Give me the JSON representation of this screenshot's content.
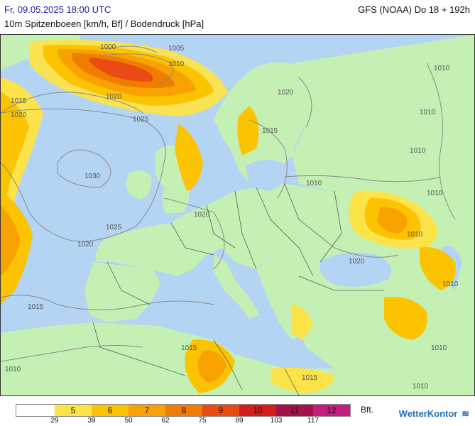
{
  "header": {
    "datetime": "Fr, 09.05.2025 18:00 UTC",
    "model": "GFS (NOAA) Do 18 + 192h",
    "parameter": "10m Spitzenboeen [km/h, Bf] / Bodendruck [hPa]"
  },
  "map": {
    "isobar_labels": [
      "1000",
      "1005",
      "1010",
      "1015",
      "1020",
      "1025",
      "1030"
    ],
    "colors": {
      "sea": "#b4d4f4",
      "land": "#c4f0b4",
      "gust_5": "#fde34a",
      "gust_6": "#fbc300",
      "gust_7": "#f7a200",
      "gust_8": "#f07c00",
      "gust_9": "#e84c14"
    }
  },
  "legend": {
    "segments": [
      {
        "label": "",
        "color": "#ffffff"
      },
      {
        "label": "5",
        "color": "#fde34a"
      },
      {
        "label": "6",
        "color": "#fbc300"
      },
      {
        "label": "7",
        "color": "#f7a200"
      },
      {
        "label": "8",
        "color": "#f07c00"
      },
      {
        "label": "9",
        "color": "#e84c14"
      },
      {
        "label": "10",
        "color": "#d61c1c"
      },
      {
        "label": "11",
        "color": "#a4104a"
      },
      {
        "label": "12",
        "color": "#c41c80"
      }
    ],
    "unit": "Bft.",
    "ticks": [
      "29",
      "39",
      "50",
      "62",
      "75",
      "89",
      "103",
      "117"
    ]
  },
  "logo": {
    "text": "WetterKontor",
    "icon": "wind-waves-icon"
  }
}
